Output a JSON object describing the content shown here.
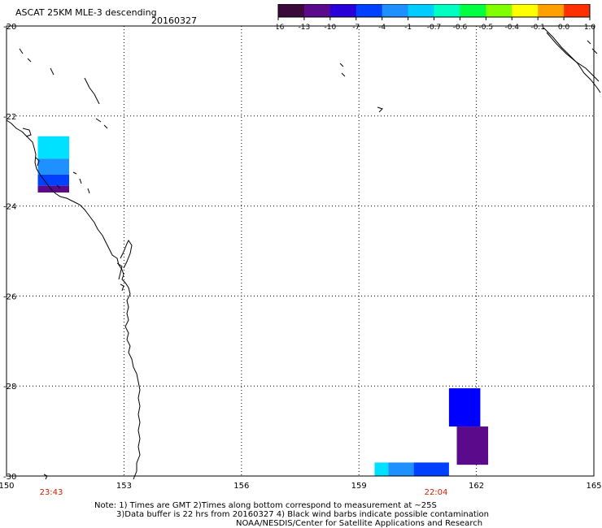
{
  "title": "ASCAT 25KM MLE-3 descending",
  "date": "20160327",
  "colorbar": {
    "tick_labels": [
      "-16",
      "-13",
      "-10",
      "-7",
      "-4",
      "-1",
      "-0.7",
      "-0.6",
      "-0.5",
      "-0.4",
      "-0.1",
      "0.0",
      "1.0"
    ],
    "colors": [
      "#3a0a3a",
      "#5a0a8a",
      "#2a00d8",
      "#0040ff",
      "#1e90ff",
      "#00ccff",
      "#00ffc0",
      "#00ff40",
      "#80ff00",
      "#ffff00",
      "#ffa000",
      "#ff3000"
    ]
  },
  "map": {
    "lon_ticks": [
      "150",
      "153",
      "156",
      "159",
      "162",
      "165"
    ],
    "lat_ticks": [
      "-20",
      "-22",
      "-24",
      "-26",
      "-28",
      "-30"
    ],
    "lon_range": [
      150,
      165
    ],
    "lat_range": [
      -30,
      -20
    ],
    "time_labels": [
      "23:43",
      "22:04"
    ],
    "time_label_color": "#cc2200",
    "coastline_color": "#000000"
  },
  "chart_data": {
    "type": "heatmap",
    "title": "ASCAT 25KM MLE-3 descending",
    "xlim": [
      150,
      165
    ],
    "ylim": [
      -30,
      -20
    ],
    "cells": [
      {
        "lon0": 150.8,
        "lon1": 151.6,
        "lat0": -22.45,
        "lat1": -22.95,
        "color": "#00e0ff"
      },
      {
        "lon0": 150.8,
        "lon1": 151.6,
        "lat0": -22.95,
        "lat1": -23.3,
        "color": "#1e90ff"
      },
      {
        "lon0": 150.8,
        "lon1": 151.6,
        "lat0": -23.3,
        "lat1": -23.55,
        "color": "#0040ff"
      },
      {
        "lon0": 150.8,
        "lon1": 151.6,
        "lat0": -23.55,
        "lat1": -23.7,
        "color": "#5a0a8a"
      },
      {
        "lon0": 161.3,
        "lon1": 162.1,
        "lat0": -28.05,
        "lat1": -28.9,
        "color": "#0000ff"
      },
      {
        "lon0": 161.5,
        "lon1": 162.3,
        "lat0": -28.9,
        "lat1": -29.75,
        "color": "#5a0a8a"
      },
      {
        "lon0": 159.4,
        "lon1": 159.75,
        "lat0": -29.7,
        "lat1": -30.0,
        "color": "#00e0ff"
      },
      {
        "lon0": 159.75,
        "lon1": 160.4,
        "lat0": -29.7,
        "lat1": -30.0,
        "color": "#1e90ff"
      },
      {
        "lon0": 160.4,
        "lon1": 161.3,
        "lat0": -29.7,
        "lat1": -30.0,
        "color": "#0040ff"
      }
    ]
  },
  "notes": [
    "Note: 1) Times are GMT 2)Times along bottom correspond to measurement at ~25S",
    "3)Data buffer is 22 hrs from 20160327 4) Black wind barbs indicate possible contamination",
    "NOAA/NESDIS/Center for Satellite Applications and Research"
  ]
}
